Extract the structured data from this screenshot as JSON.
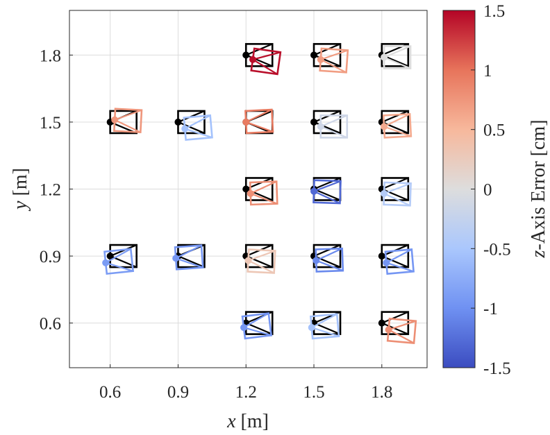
{
  "chart_data": {
    "type": "scatter",
    "xlabel_var": "x",
    "xlabel_unit": " [m]",
    "ylabel_var": "y",
    "ylabel_unit": " [m]",
    "xlim": [
      0.42,
      2.0
    ],
    "ylim": [
      0.4,
      2.0
    ],
    "xticks": [
      0.6,
      0.9,
      1.2,
      1.5,
      1.8
    ],
    "yticks": [
      0.6,
      0.9,
      1.2,
      1.5,
      1.8
    ],
    "x_tick_labels": [
      "0.6",
      "0.9",
      "1.2",
      "1.5",
      "1.8"
    ],
    "y_tick_labels": [
      "0.6",
      "0.9",
      "1.2",
      "1.5",
      "1.8"
    ],
    "grid": true,
    "colorbar": {
      "label_var": "z",
      "label_rest": "-Axis Error [cm]",
      "range": [
        -1.5,
        1.5
      ],
      "ticks": [
        1.5,
        1,
        0.5,
        0,
        -0.5,
        -1,
        -1.5
      ],
      "tick_labels": [
        "1.5",
        "1",
        "0.5",
        "0",
        "-0.5",
        "-1",
        "-1.5"
      ],
      "colormap": [
        "#3b4cc0",
        "#6f91f2",
        "#aac7fd",
        "#dddddd",
        "#f7b89c",
        "#e7745b",
        "#b40426"
      ]
    },
    "ground_truth_color": "#000000",
    "poses": [
      {
        "x": 0.6,
        "y": 1.5,
        "est_x": 0.62,
        "est_y": 1.51,
        "yaw_deg": -3,
        "z_error": 0.75
      },
      {
        "x": 0.6,
        "y": 0.9,
        "est_x": 0.58,
        "est_y": 0.87,
        "yaw_deg": 6,
        "z_error": -0.9
      },
      {
        "x": 0.9,
        "y": 1.5,
        "est_x": 0.93,
        "est_y": 1.47,
        "yaw_deg": 5,
        "z_error": -0.55
      },
      {
        "x": 0.9,
        "y": 0.9,
        "est_x": 0.89,
        "est_y": 0.89,
        "yaw_deg": 4,
        "z_error": -0.95
      },
      {
        "x": 1.2,
        "y": 1.8,
        "est_x": 1.23,
        "est_y": 1.78,
        "yaw_deg": -8,
        "z_error": 1.45
      },
      {
        "x": 1.2,
        "y": 1.5,
        "est_x": 1.2,
        "est_y": 1.5,
        "yaw_deg": 3,
        "z_error": 0.95
      },
      {
        "x": 1.2,
        "y": 1.2,
        "est_x": 1.22,
        "est_y": 1.18,
        "yaw_deg": 2,
        "z_error": 0.8
      },
      {
        "x": 1.2,
        "y": 0.9,
        "est_x": 1.21,
        "est_y": 0.88,
        "yaw_deg": -3,
        "z_error": 0.3
      },
      {
        "x": 1.2,
        "y": 0.6,
        "est_x": 1.19,
        "est_y": 0.58,
        "yaw_deg": 7,
        "z_error": -0.95
      },
      {
        "x": 1.5,
        "y": 1.8,
        "est_x": 1.53,
        "est_y": 1.78,
        "yaw_deg": -4,
        "z_error": 0.7
      },
      {
        "x": 1.5,
        "y": 1.5,
        "est_x": 1.53,
        "est_y": 1.48,
        "yaw_deg": 0,
        "z_error": -0.15
      },
      {
        "x": 1.5,
        "y": 1.2,
        "est_x": 1.5,
        "est_y": 1.19,
        "yaw_deg": -2,
        "z_error": -1.3
      },
      {
        "x": 1.5,
        "y": 0.9,
        "est_x": 1.51,
        "est_y": 0.88,
        "yaw_deg": 2,
        "z_error": -1.05
      },
      {
        "x": 1.5,
        "y": 0.6,
        "est_x": 1.49,
        "est_y": 0.58,
        "yaw_deg": 5,
        "z_error": -0.55
      },
      {
        "x": 1.8,
        "y": 1.8,
        "est_x": 1.81,
        "est_y": 1.79,
        "yaw_deg": 0,
        "z_error": 0.0
      },
      {
        "x": 1.8,
        "y": 1.5,
        "est_x": 1.81,
        "est_y": 1.48,
        "yaw_deg": 3,
        "z_error": 0.6
      },
      {
        "x": 1.8,
        "y": 1.2,
        "est_x": 1.81,
        "est_y": 1.18,
        "yaw_deg": -2,
        "z_error": -0.4
      },
      {
        "x": 1.8,
        "y": 0.9,
        "est_x": 1.82,
        "est_y": 0.87,
        "yaw_deg": 5,
        "z_error": -0.95
      },
      {
        "x": 1.8,
        "y": 0.6,
        "est_x": 1.83,
        "est_y": 0.57,
        "yaw_deg": -5,
        "z_error": 0.8
      }
    ]
  }
}
